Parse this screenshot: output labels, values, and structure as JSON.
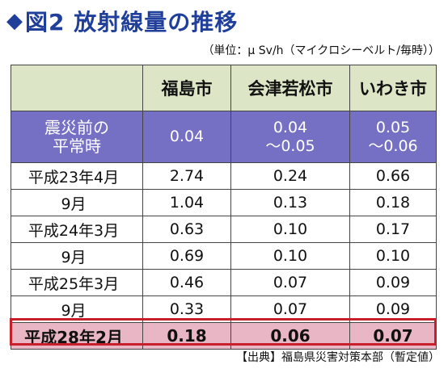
{
  "title": {
    "prefix": "◆",
    "text": "図2 放射線量の推移"
  },
  "unit_note": "（単位：μ Sv/h（マイクロシーベルト/毎時））",
  "table": {
    "columns": [
      "福島市",
      "会津若松市",
      "いわき市"
    ],
    "baseline": {
      "label_line1": "震災前の",
      "label_line2": "平常時",
      "values": [
        {
          "line1": "0.04",
          "line2": ""
        },
        {
          "line1": "0.04",
          "line2": "～0.05"
        },
        {
          "line1": "0.05",
          "line2": "～0.06"
        }
      ]
    },
    "rows": [
      {
        "label": "平成23年4月",
        "values": [
          "2.74",
          "0.24",
          "0.66"
        ]
      },
      {
        "label": "9月",
        "values": [
          "1.04",
          "0.13",
          "0.18"
        ]
      },
      {
        "label": "平成24年3月",
        "values": [
          "0.63",
          "0.10",
          "0.17"
        ]
      },
      {
        "label": "9月",
        "values": [
          "0.69",
          "0.10",
          "0.10"
        ]
      },
      {
        "label": "平成25年3月",
        "values": [
          "0.46",
          "0.07",
          "0.09"
        ]
      },
      {
        "label": "9月",
        "values": [
          "0.33",
          "0.07",
          "0.09"
        ]
      },
      {
        "label": "平成28年2月",
        "values": [
          "0.18",
          "0.06",
          "0.07"
        ]
      }
    ]
  },
  "source_note": "【出典】福島県災害対策本部（暫定値）",
  "colors": {
    "title": "#1f3f9a",
    "header_bg": "#dce6c6",
    "baseline_bg": "#7670c4",
    "latest_bg": "#e8b6c4",
    "latest_border": "#c8202a"
  }
}
